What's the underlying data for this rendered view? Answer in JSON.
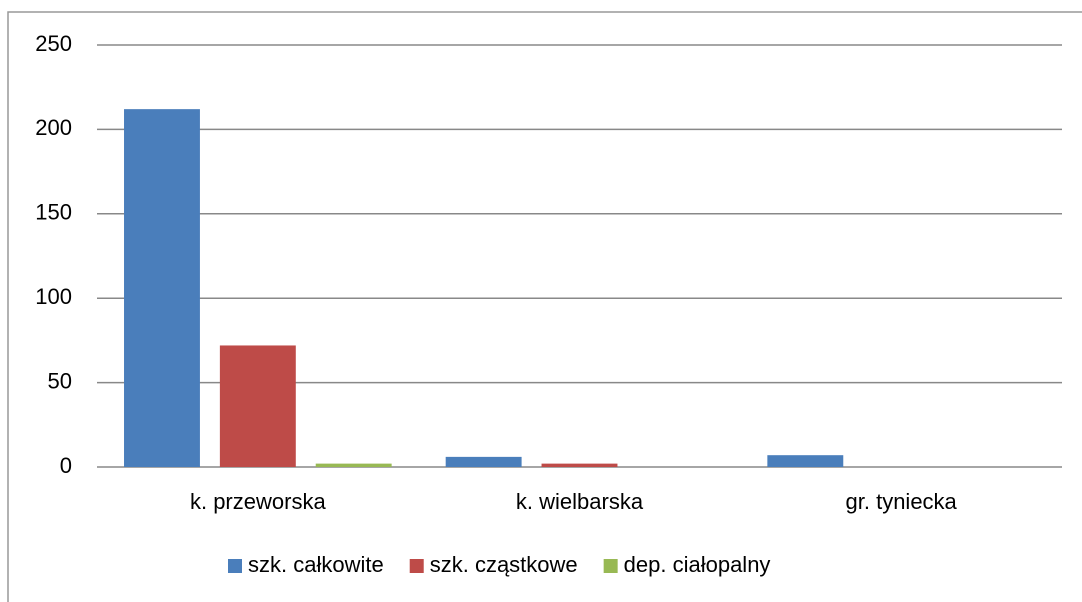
{
  "chart_data": {
    "type": "bar",
    "categories": [
      "k. przeworska",
      "k. wielbarska",
      "gr. tyniecka"
    ],
    "series": [
      {
        "name": "szk. całkowite",
        "color": "#4a7ebb",
        "values": [
          212,
          6,
          7
        ]
      },
      {
        "name": "szk. cząstkowe",
        "color": "#be4b48",
        "values": [
          72,
          2,
          0
        ]
      },
      {
        "name": "dep. ciałopalny",
        "color": "#98b954",
        "values": [
          2,
          0,
          0
        ]
      }
    ],
    "ylim": [
      0,
      250
    ],
    "yticks": [
      0,
      50,
      100,
      150,
      200,
      250
    ],
    "grid": true,
    "legend": "bottom"
  }
}
